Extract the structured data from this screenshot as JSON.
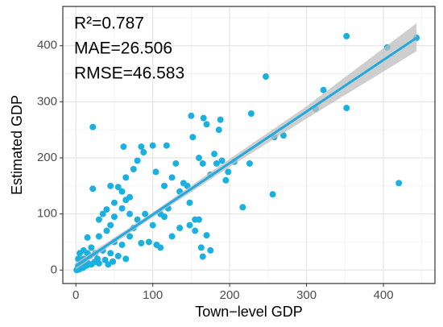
{
  "chart_data": {
    "type": "scatter",
    "xlabel": "Town−level GDP",
    "ylabel": "Estimated GDP",
    "annotations": [
      "R²=0.787",
      "MAE=26.506",
      "RMSE=46.583"
    ],
    "xlim": [
      -17,
      467
    ],
    "ylim": [
      -24,
      470
    ],
    "xticks": [
      0,
      100,
      200,
      300,
      400
    ],
    "yticks": [
      0,
      100,
      200,
      300,
      400
    ],
    "minor_xticks": [
      50,
      150,
      250,
      350,
      450
    ],
    "minor_yticks": [
      50,
      150,
      250,
      350,
      450
    ],
    "grid": true,
    "color": "#1ab0e0",
    "line_color": "#22a9e0",
    "band_color": "#bebebe",
    "series": [
      {
        "name": "points",
        "x": [
          443,
          405,
          352,
          247,
          228,
          322,
          312,
          352,
          420,
          270,
          258,
          256,
          217,
          206,
          226,
          188,
          186,
          166,
          170,
          150,
          152,
          175,
          170,
          165,
          163,
          183,
          180,
          190,
          118,
          100,
          104,
          85,
          88,
          62,
          80,
          75,
          55,
          45,
          40,
          22,
          22,
          30,
          35,
          50,
          65,
          60,
          70,
          90,
          110,
          115,
          120,
          130,
          140,
          148,
          155,
          160,
          148,
          155,
          135,
          125,
          100,
          85,
          95,
          105,
          110,
          60,
          50,
          40,
          30,
          20,
          15,
          15,
          10,
          8,
          5,
          2,
          3,
          12,
          18,
          25,
          28,
          35,
          45,
          55,
          65,
          70,
          75,
          80,
          45,
          50,
          60,
          65,
          70,
          115,
          125,
          135,
          145,
          198,
          195,
          160,
          165,
          175,
          1,
          4,
          6,
          9,
          11,
          14,
          7,
          16,
          20,
          24,
          30,
          38,
          42,
          48,
          3,
          5,
          10
        ],
        "values": [
          414,
          397,
          417,
          345,
          279,
          321,
          287,
          289,
          155,
          240,
          237,
          135,
          112,
          193,
          190,
          268,
          250,
          271,
          260,
          275,
          237,
          35,
          62,
          24,
          40,
          190,
          207,
          195,
          222,
          222,
          175,
          220,
          210,
          220,
          195,
          180,
          148,
          150,
          108,
          145,
          255,
          90,
          100,
          120,
          165,
          140,
          100,
          100,
          100,
          95,
          110,
          190,
          155,
          120,
          90,
          90,
          80,
          70,
          75,
          60,
          80,
          48,
          50,
          45,
          40,
          45,
          50,
          70,
          60,
          40,
          58,
          30,
          20,
          10,
          5,
          2,
          8,
          15,
          25,
          30,
          20,
          35,
          30,
          25,
          20,
          60,
          75,
          90,
          80,
          95,
          110,
          125,
          130,
          150,
          165,
          140,
          150,
          175,
          160,
          200,
          190,
          170,
          0,
          1,
          3,
          4,
          6,
          8,
          15,
          12,
          10,
          14,
          12,
          18,
          10,
          15,
          20,
          30,
          35
        ]
      }
    ],
    "fit": {
      "x": [
        0,
        443
      ],
      "values": [
        7,
        414
      ]
    },
    "band": {
      "x": [
        0,
        100,
        200,
        300,
        443
      ],
      "lower": [
        1,
        94,
        184,
        270,
        390
      ],
      "upper": [
        13,
        103,
        198,
        292,
        440
      ]
    }
  }
}
